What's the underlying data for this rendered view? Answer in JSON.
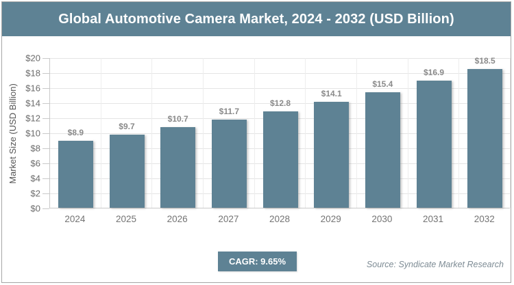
{
  "header": {
    "title": "Global Automotive Camera Market, 2024 - 2032 (USD Billion)"
  },
  "chart_data": {
    "type": "bar",
    "title": "Global Automotive Camera Market, 2024 - 2032 (USD Billion)",
    "categories": [
      "2024",
      "2025",
      "2026",
      "2027",
      "2028",
      "2029",
      "2030",
      "2031",
      "2032"
    ],
    "values": [
      8.9,
      9.7,
      10.7,
      11.7,
      12.8,
      14.1,
      15.4,
      16.9,
      18.5
    ],
    "value_labels": [
      "$8.9",
      "$9.7",
      "$10.7",
      "$11.7",
      "$12.8",
      "$14.1",
      "$15.4",
      "$16.9",
      "$18.5"
    ],
    "xlabel": "",
    "ylabel": "Market Size (USD Billion)",
    "ylim": [
      0,
      20
    ],
    "ytick_step": 2,
    "ytick_labels": [
      "$0",
      "$2",
      "$4",
      "$6",
      "$8",
      "$10",
      "$12",
      "$14",
      "$16",
      "$18",
      "$20"
    ],
    "grid": true,
    "legend": false,
    "bar_color": "#5e8294"
  },
  "footer": {
    "cagr_label": "CAGR: 9.65%",
    "source": "Source: Syndicate Market Research"
  },
  "colors": {
    "accent": "#5e8294",
    "grid_h": "#e4e4e4",
    "grid_v": "#ededed",
    "axis": "#c9c9c9",
    "tick_text": "#6b6b6b",
    "x_label_text": "#737373",
    "value_label_text": "#8a8a8a",
    "y_title_text": "#555555",
    "source_text": "#7d8b94",
    "frame_border": "#a5a5a5"
  }
}
